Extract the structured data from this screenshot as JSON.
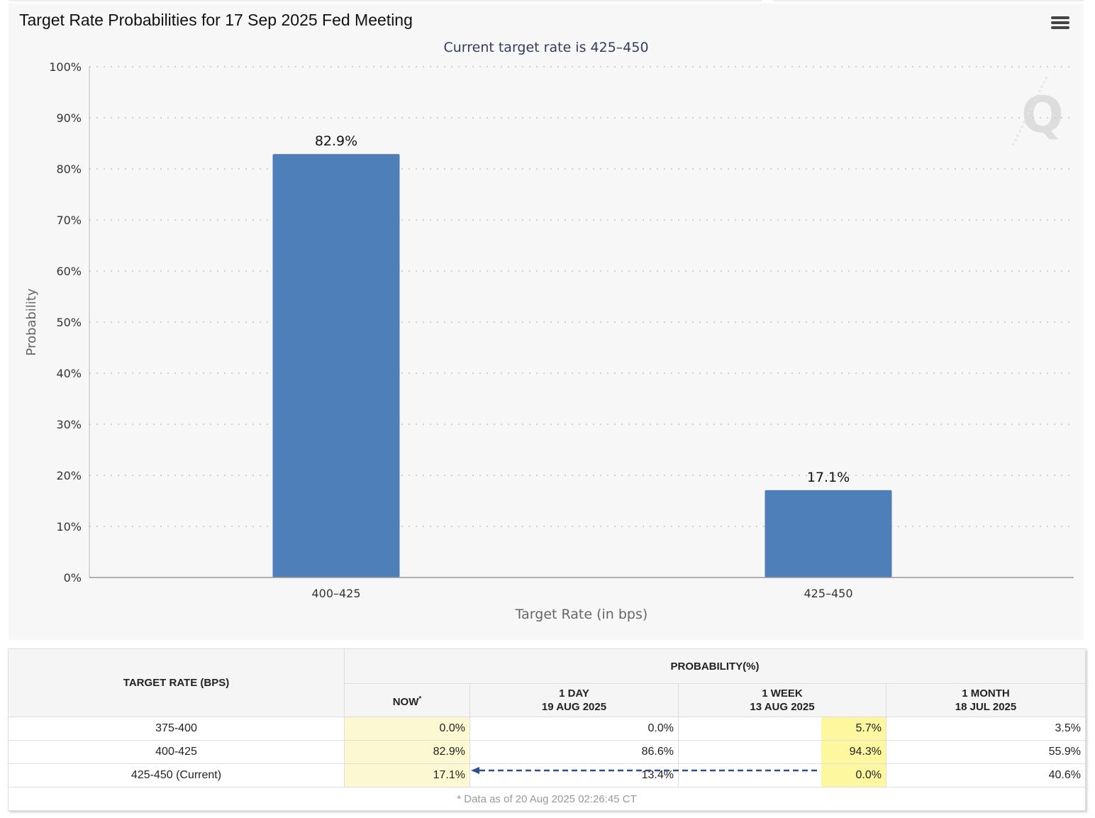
{
  "chart_data": {
    "type": "bar",
    "title": "Target Rate Probabilities for 17 Sep 2025 Fed Meeting",
    "subtitle": "Current target rate is 425–450",
    "xlabel": "Target Rate (in bps)",
    "ylabel": "Probability",
    "categories": [
      "400–425",
      "425–450"
    ],
    "values": [
      82.9,
      17.1
    ],
    "data_labels": [
      "82.9%",
      "17.1%"
    ],
    "ylim": [
      0,
      100
    ],
    "yticks": [
      "0%",
      "10%",
      "20%",
      "30%",
      "40%",
      "50%",
      "60%",
      "70%",
      "80%",
      "90%",
      "100%"
    ],
    "grid": true,
    "legend": "none",
    "bar_color": "#4f7fb8",
    "watermark": "Q"
  },
  "table": {
    "header_target": "TARGET RATE (BPS)",
    "header_probability": "PROBABILITY(%)",
    "col_now": "NOW",
    "col_now_mark": "*",
    "col_1day": "1 DAY",
    "col_1day_date": "19 AUG 2025",
    "col_1week": "1 WEEK",
    "col_1week_date": "13 AUG 2025",
    "col_1month": "1 MONTH",
    "col_1month_date": "18 JUL 2025",
    "rows": [
      {
        "rate": "375-400",
        "now": "0.0%",
        "day": "0.0%",
        "week": "5.7%",
        "month": "3.5%"
      },
      {
        "rate": "400-425",
        "now": "82.9%",
        "day": "86.6%",
        "week": "94.3%",
        "month": "55.9%"
      },
      {
        "rate": "425-450 (Current)",
        "now": "17.1%",
        "day": "13.4%",
        "week": "0.0%",
        "month": "40.6%"
      }
    ],
    "note": "* Data as of 20 Aug 2025 02:26:45 CT",
    "highlight_color": "#fdf89f",
    "now_color": "#fbf8d2",
    "arrow_color": "#2f4f8f"
  }
}
